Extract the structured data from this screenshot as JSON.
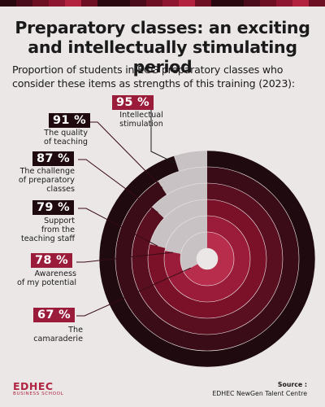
{
  "title": {
    "line1": "Preparatory classes: an exciting",
    "line2": "and intellectually stimulating period"
  },
  "subtitle": {
    "line1": "Proportion of students in ECG preparatory classes who",
    "line2": "consider these items as strengths of this training (2023):"
  },
  "chart_data": {
    "type": "radial_bar",
    "unit": "%",
    "items": [
      {
        "value": 95,
        "value_label": "95 %",
        "label": [
          "Intellectual",
          "stimulation"
        ]
      },
      {
        "value": 91,
        "value_label": "91 %",
        "label": [
          "The quality",
          "of teaching"
        ]
      },
      {
        "value": 87,
        "value_label": "87 %",
        "label": [
          "The challenge",
          "of preparatory",
          "classes"
        ]
      },
      {
        "value": 79,
        "value_label": "79 %",
        "label": [
          "Support",
          "from the",
          "teaching staff"
        ]
      },
      {
        "value": 78,
        "value_label": "78 %",
        "label": [
          "Awareness",
          "of my potential"
        ]
      },
      {
        "value": 67,
        "value_label": "67 %",
        "label": [
          "The",
          "camaraderie"
        ]
      }
    ],
    "colors": [
      "#1e0a0f",
      "#3a0c17",
      "#5a0f21",
      "#7a1129",
      "#9b1c3a",
      "#b82d4c"
    ],
    "background_color": "#ebe7e7",
    "remainder_color": "#c9c2c4"
  },
  "source": {
    "label": "Source :",
    "text": "EDHEC NewGen Talent Centre"
  },
  "logo": {
    "name": "EDHEC",
    "tagline": "BUSINESS SCHOOL"
  }
}
